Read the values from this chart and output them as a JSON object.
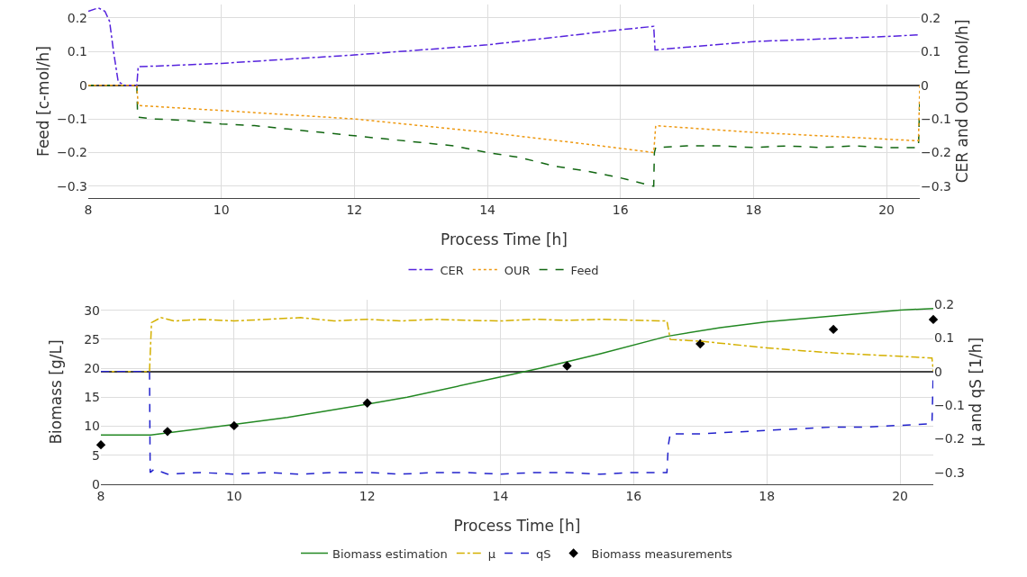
{
  "chart_data": [
    {
      "type": "line",
      "xlabel": "Process Time [h]",
      "ylabel": "Feed [c-mol/h]",
      "y2label": "CER and OUR [mol/h]",
      "xlim": [
        8,
        20.5
      ],
      "xticks": [
        8,
        10,
        12,
        14,
        16,
        18,
        20
      ],
      "ylim": [
        -0.335,
        0.24
      ],
      "yticks": [
        -0.3,
        -0.2,
        -0.1,
        0,
        0.1,
        0.2
      ],
      "y2lim": [
        -0.335,
        0.24
      ],
      "y2ticks": [
        -0.3,
        -0.2,
        -0.1,
        0,
        0.1,
        0.2
      ],
      "grid": true,
      "legend": "bottom",
      "series": [
        {
          "name": "CER",
          "color": "#5522dd",
          "line_style": "dashdot",
          "axis": "y2",
          "x": [
            8,
            8.15,
            8.25,
            8.32,
            8.38,
            8.45,
            8.55,
            8.73,
            8.75,
            10,
            12,
            14,
            16,
            16.5,
            16.52,
            18,
            20,
            20.5
          ],
          "values": [
            0.22,
            0.23,
            0.22,
            0.19,
            0.1,
            0.01,
            0,
            0,
            0.055,
            0.065,
            0.09,
            0.12,
            0.165,
            0.175,
            0.105,
            0.13,
            0.145,
            0.15
          ]
        },
        {
          "name": "OUR",
          "color": "#ee9911",
          "line_style": "dotted",
          "axis": "y2",
          "x": [
            8,
            8.73,
            8.75,
            10,
            12,
            14,
            15.5,
            16.5,
            16.53,
            18,
            19.5,
            20.48,
            20.5
          ],
          "values": [
            0,
            0,
            -0.06,
            -0.075,
            -0.1,
            -0.14,
            -0.175,
            -0.2,
            -0.12,
            -0.14,
            -0.155,
            -0.165,
            0
          ]
        },
        {
          "name": "Feed",
          "color": "#116611",
          "line_style": "dashed",
          "x": [
            8,
            8.73,
            8.74,
            8.75,
            9,
            9.5,
            10,
            10.5,
            11,
            11.5,
            12,
            12.5,
            13,
            13.5,
            14,
            14.5,
            15,
            15.5,
            16,
            16.5,
            16.51,
            16.53,
            17,
            17.5,
            18,
            18.5,
            19,
            19.5,
            20,
            20.48,
            20.5
          ],
          "values": [
            0,
            0,
            -0.08,
            -0.095,
            -0.1,
            -0.105,
            -0.115,
            -0.12,
            -0.13,
            -0.14,
            -0.15,
            -0.16,
            -0.17,
            -0.18,
            -0.2,
            -0.215,
            -0.24,
            -0.255,
            -0.275,
            -0.3,
            -0.2,
            -0.185,
            -0.18,
            -0.18,
            -0.185,
            -0.18,
            -0.185,
            -0.18,
            -0.185,
            -0.185,
            -0.04
          ]
        }
      ]
    },
    {
      "type": "line",
      "xlabel": "Process Time [h]",
      "ylabel": "Biomass [g/L]",
      "y2label": "μ and qS [1/h]",
      "xlim": [
        8,
        20.5
      ],
      "xticks": [
        8,
        10,
        12,
        14,
        16,
        18,
        20
      ],
      "ylim": [
        0,
        31.8
      ],
      "yticks": [
        0,
        5,
        10,
        15,
        20,
        25,
        30
      ],
      "y2lim": [
        -0.335,
        0.213
      ],
      "y2ticks": [
        -0.3,
        -0.2,
        -0.1,
        0,
        0.1,
        0.2
      ],
      "grid": true,
      "legend": "bottom",
      "series": [
        {
          "name": "Biomass estimation",
          "color": "#228822",
          "line_style": "solid",
          "x": [
            8,
            8.75,
            10,
            10.8,
            12,
            12.6,
            14,
            14.6,
            15.5,
            16.5,
            17.3,
            18,
            19,
            20,
            20.5
          ],
          "values": [
            8.5,
            8.5,
            10.3,
            11.5,
            13.8,
            15,
            18.5,
            20,
            22.5,
            25.5,
            27,
            28,
            29,
            30,
            30.3
          ]
        },
        {
          "name": "μ",
          "color": "#d4b000",
          "line_style": "dashdot",
          "axis": "y2",
          "x": [
            8,
            8.73,
            8.76,
            8.9,
            9.1,
            9.5,
            10,
            10.5,
            11,
            11.5,
            12,
            12.5,
            13,
            13.5,
            14,
            14.5,
            15,
            15.5,
            16,
            16.5,
            16.55,
            17,
            17.5,
            18,
            18.5,
            19,
            19.5,
            20,
            20.48,
            20.5
          ],
          "values": [
            0,
            0,
            0.145,
            0.16,
            0.15,
            0.155,
            0.15,
            0.155,
            0.16,
            0.15,
            0.155,
            0.15,
            0.155,
            0.152,
            0.15,
            0.155,
            0.152,
            0.155,
            0.152,
            0.15,
            0.095,
            0.09,
            0.08,
            0.07,
            0.062,
            0.055,
            0.05,
            0.045,
            0.04,
            0
          ]
        },
        {
          "name": "qS",
          "color": "#2222cc",
          "line_style": "dashed",
          "axis": "y2",
          "x": [
            8,
            8.73,
            8.74,
            8.8,
            9,
            9.5,
            10,
            10.5,
            11,
            11.5,
            12,
            12.5,
            13,
            13.5,
            14,
            14.5,
            15,
            15.5,
            16,
            16.5,
            16.52,
            16.55,
            17,
            17.5,
            18,
            18.5,
            19,
            19.5,
            20,
            20.48,
            20.5
          ],
          "values": [
            0,
            0,
            -0.3,
            -0.29,
            -0.305,
            -0.3,
            -0.305,
            -0.3,
            -0.305,
            -0.3,
            -0.3,
            -0.305,
            -0.3,
            -0.3,
            -0.305,
            -0.3,
            -0.3,
            -0.305,
            -0.3,
            -0.3,
            -0.22,
            -0.185,
            -0.185,
            -0.18,
            -0.175,
            -0.17,
            -0.165,
            -0.165,
            -0.16,
            -0.155,
            0
          ]
        },
        {
          "name": "Biomass measurements",
          "type": "scatter",
          "marker": "diamond",
          "color": "#000000",
          "x": [
            8,
            9,
            10,
            12,
            15,
            17,
            19,
            20.5
          ],
          "values": [
            6.8,
            9.1,
            10.1,
            14,
            20.4,
            24.2,
            26.7,
            28.4
          ]
        }
      ]
    }
  ]
}
